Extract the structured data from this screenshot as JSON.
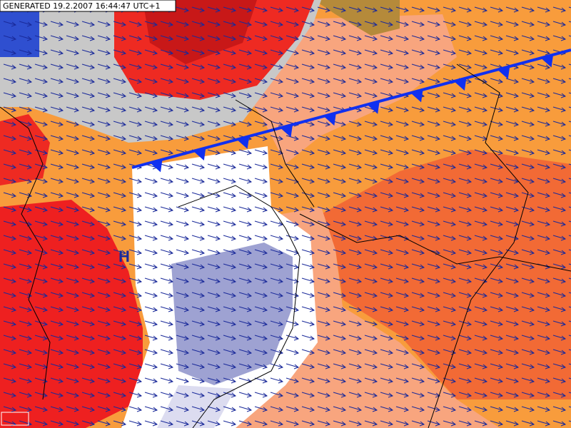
{
  "header": {
    "generated": "GENERATED 19.2.2007 16:44:47 UTC+1"
  },
  "map": {
    "pressure_label": "H"
  }
}
